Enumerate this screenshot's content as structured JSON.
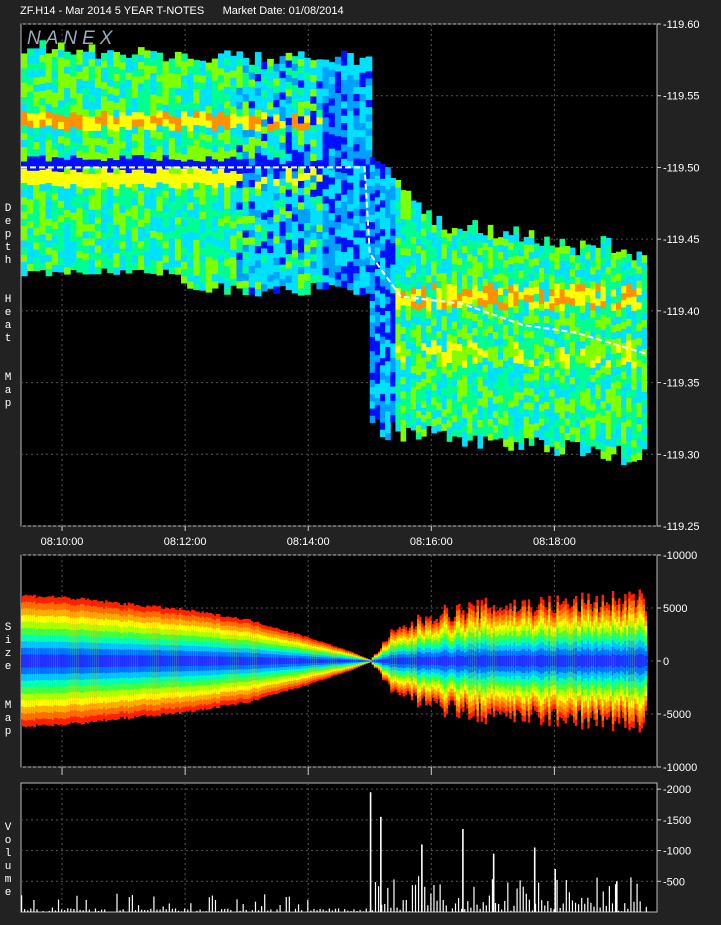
{
  "header": {
    "symbol": "ZF.H14 - Mar 2014 5 YEAR T-NOTES",
    "market_date": "Market Date: 01/08/2014"
  },
  "logo": "NANEX",
  "panels": {
    "depth": "Depth Heat Map",
    "size": "Size Map",
    "volume": "Volume"
  },
  "chart_data": [
    {
      "type": "heatmap",
      "title": "Depth Heat Map",
      "x_tick_labels": [
        "08:10:00",
        "08:12:00",
        "08:14:00",
        "08:16:00",
        "08:18:00"
      ],
      "xlim": [
        "08:09:20",
        "08:19:40"
      ],
      "y_tick_labels": [
        "119.60",
        "119.55",
        "119.50",
        "119.45",
        "119.40",
        "119.35",
        "119.30",
        "119.25"
      ],
      "ylim": [
        119.25,
        119.6
      ],
      "grid": true,
      "color_scale": [
        "#0010ff",
        "#00a0ff",
        "#00e0ff",
        "#00ff90",
        "#80ff00",
        "#ffff00",
        "#ff9000"
      ],
      "price_path": [
        {
          "time": "08:09:20",
          "price": 119.5
        },
        {
          "time": "08:14:55",
          "price": 119.5
        },
        {
          "time": "08:15:00",
          "price": 119.44
        },
        {
          "time": "08:15:30",
          "price": 119.41
        },
        {
          "time": "08:16:30",
          "price": 119.405
        },
        {
          "time": "08:17:30",
          "price": 119.39
        },
        {
          "time": "08:18:20",
          "price": 119.385
        },
        {
          "time": "08:19:30",
          "price": 119.37
        }
      ]
    },
    {
      "type": "area",
      "title": "Size Map",
      "y_tick_labels": [
        "10000",
        "5000",
        "0",
        "-5000",
        "-10000"
      ],
      "ylim": [
        -10000,
        10000
      ],
      "grid": true,
      "envelope": [
        {
          "time": "08:09:20",
          "size": 6200
        },
        {
          "time": "08:10:00",
          "size": 6000
        },
        {
          "time": "08:11:00",
          "size": 5400
        },
        {
          "time": "08:12:00",
          "size": 4800
        },
        {
          "time": "08:13:00",
          "size": 3900
        },
        {
          "time": "08:14:00",
          "size": 2200
        },
        {
          "time": "08:14:40",
          "size": 900
        },
        {
          "time": "08:15:00",
          "size": 100
        },
        {
          "time": "08:15:20",
          "size": 2500
        },
        {
          "time": "08:16:00",
          "size": 4300
        },
        {
          "time": "08:17:00",
          "size": 5100
        },
        {
          "time": "08:18:00",
          "size": 5300
        },
        {
          "time": "08:19:30",
          "size": 5800
        }
      ]
    },
    {
      "type": "bar",
      "title": "Volume",
      "y_tick_labels": [
        "2000",
        "1500",
        "1000",
        "500"
      ],
      "ylim": [
        0,
        2100
      ],
      "grid": true,
      "spikes": [
        {
          "time": "08:15:00",
          "volume": 1950
        },
        {
          "time": "08:15:10",
          "volume": 1550
        },
        {
          "time": "08:15:50",
          "volume": 1100
        },
        {
          "time": "08:16:30",
          "volume": 1350
        },
        {
          "time": "08:17:00",
          "volume": 950
        },
        {
          "time": "08:17:40",
          "volume": 1050
        },
        {
          "time": "08:18:00",
          "volume": 700
        },
        {
          "time": "08:19:00",
          "volume": 500
        }
      ]
    }
  ]
}
